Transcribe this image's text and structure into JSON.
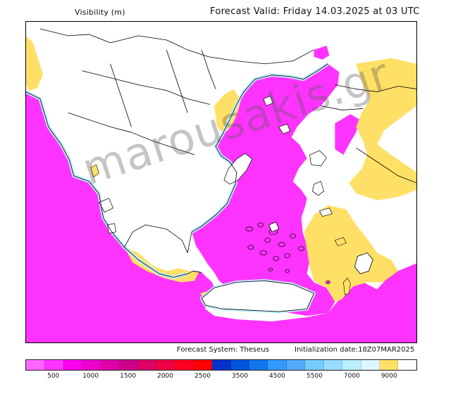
{
  "header": {
    "variable_label": "Visibility (m)",
    "forecast_valid": "Forecast Valid:  Friday 14.03.2025 at 03 UTC"
  },
  "footer": {
    "system": "Forecast System: Theseus",
    "init": "Initialization date:18Z07MAR2025"
  },
  "watermark": "marousakis.gr",
  "legend": {
    "colors": [
      "#ff66ff",
      "#ff33ff",
      "#ff00ee",
      "#ee00cc",
      "#dd00aa",
      "#cc0088",
      "#dd0066",
      "#ee0044",
      "#ff0022",
      "#ff0000",
      "#0033cc",
      "#0055dd",
      "#1177ee",
      "#3399ff",
      "#55aaff",
      "#77ccff",
      "#99ddff",
      "#bbeeff",
      "#ddf8ff",
      "#ffe066",
      "#ffffff"
    ],
    "labels": [
      {
        "text": "500",
        "pos": 1
      },
      {
        "text": "1000",
        "pos": 2
      },
      {
        "text": "1500",
        "pos": 3
      },
      {
        "text": "2000",
        "pos": 4
      },
      {
        "text": "2500",
        "pos": 5
      },
      {
        "text": "3500",
        "pos": 6
      },
      {
        "text": "4500",
        "pos": 7
      },
      {
        "text": "5500",
        "pos": 8
      },
      {
        "text": "7000",
        "pos": 9
      },
      {
        "text": "9000",
        "pos": 10
      }
    ]
  },
  "colors": {
    "sea_low_visibility": "#ff33ff",
    "land_high_visibility": "#ffffff",
    "fog_band_yellow": "#ffe066",
    "haze_light_blue": "#ddf8ff"
  }
}
